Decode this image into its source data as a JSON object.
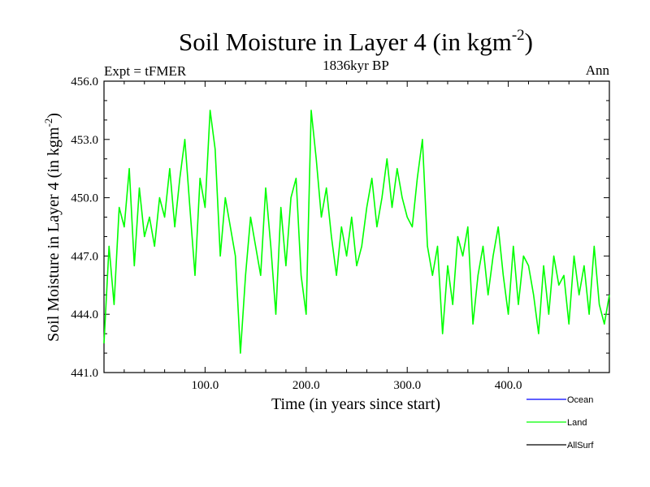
{
  "chart_data": {
    "type": "line",
    "title": "Soil Moisture in Layer 4 (in kgm",
    "title_superscript": "-2",
    "title_close": ")",
    "subtitle_left": "Expt = tFMER",
    "subtitle_center": "1836kyr BP",
    "subtitle_right": "Ann",
    "xlabel": "Time (in years since start)",
    "ylabel": "Soil Moisture in Layer 4 (in kgm",
    "ylabel_superscript": "-2",
    "ylabel_close": ")",
    "xlim": [
      0,
      500
    ],
    "ylim": [
      441.0,
      456.0
    ],
    "x_ticks": [
      100,
      200,
      300,
      400
    ],
    "x_tick_labels": [
      "100.0",
      "200.0",
      "300.0",
      "400.0"
    ],
    "y_ticks": [
      441,
      444,
      447,
      450,
      453,
      456
    ],
    "y_tick_labels": [
      "441.0",
      "444.0",
      "447.0",
      "450.0",
      "453.0",
      "456.0"
    ],
    "legend_position": "bottom-right, outside plot",
    "legend": [
      {
        "name": "Ocean",
        "color": "#0000ff"
      },
      {
        "name": "Land",
        "color": "#00ff00"
      },
      {
        "name": "AllSurf",
        "color": "#000000"
      }
    ],
    "series": [
      {
        "name": "Land",
        "color": "#00ff00",
        "x": [
          0,
          5,
          10,
          15,
          20,
          25,
          30,
          35,
          40,
          45,
          50,
          55,
          60,
          65,
          70,
          75,
          80,
          85,
          90,
          95,
          100,
          105,
          110,
          115,
          120,
          125,
          130,
          135,
          140,
          145,
          150,
          155,
          160,
          165,
          170,
          175,
          180,
          185,
          190,
          195,
          200,
          205,
          210,
          215,
          220,
          225,
          230,
          235,
          240,
          245,
          250,
          255,
          260,
          265,
          270,
          275,
          280,
          285,
          290,
          295,
          300,
          305,
          310,
          315,
          320,
          325,
          330,
          335,
          340,
          345,
          350,
          355,
          360,
          365,
          370,
          375,
          380,
          385,
          390,
          395,
          400,
          405,
          410,
          415,
          420,
          425,
          430,
          435,
          440,
          445,
          450,
          455,
          460,
          465,
          470,
          475,
          480,
          485,
          490,
          495,
          500
        ],
        "values": [
          442.5,
          447.5,
          444.5,
          449.5,
          448.5,
          451.5,
          446.5,
          450.5,
          448.0,
          449.0,
          447.5,
          450.0,
          449.0,
          451.5,
          448.5,
          451.0,
          453.0,
          449.5,
          446.0,
          451.0,
          449.5,
          454.5,
          452.5,
          447.0,
          450.0,
          448.5,
          447.0,
          442.0,
          446.0,
          449.0,
          447.5,
          446.0,
          450.5,
          447.5,
          444.0,
          449.5,
          446.5,
          450.0,
          451.0,
          446.0,
          444.0,
          454.5,
          452.0,
          449.0,
          450.5,
          448.0,
          446.0,
          448.5,
          447.0,
          449.0,
          446.5,
          447.5,
          449.5,
          451.0,
          448.5,
          450.0,
          452.0,
          449.5,
          451.5,
          450.0,
          449.0,
          448.5,
          451.0,
          453.0,
          447.5,
          446.0,
          447.5,
          443.0,
          446.5,
          444.5,
          448.0,
          447.0,
          448.5,
          443.5,
          446.0,
          447.5,
          445.0,
          447.0,
          448.5,
          446.0,
          444.0,
          447.5,
          444.5,
          447.0,
          446.5,
          445.0,
          443.0,
          446.5,
          444.0,
          447.0,
          445.5,
          446.0,
          443.5,
          447.0,
          445.0,
          446.5,
          444.0,
          447.5,
          444.5,
          443.5,
          445.0
        ]
      },
      {
        "name": "Ocean",
        "color": "#0000ff",
        "x": [],
        "values": []
      },
      {
        "name": "AllSurf",
        "color": "#000000",
        "x": [],
        "values": []
      }
    ]
  }
}
